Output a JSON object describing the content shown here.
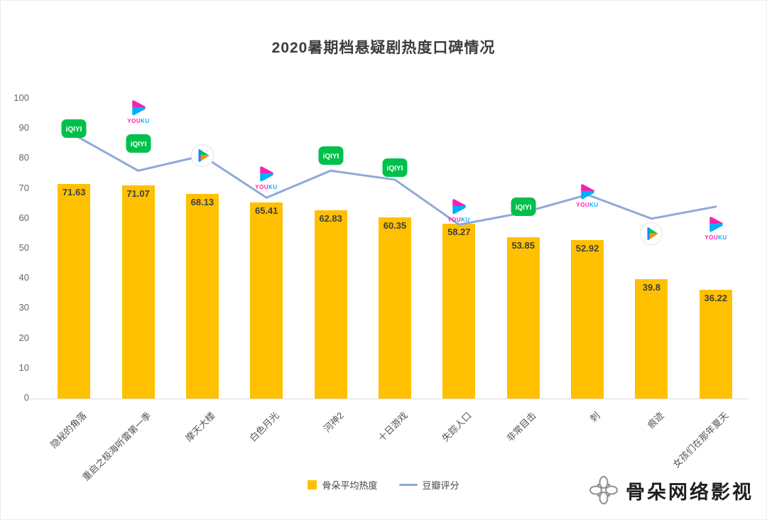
{
  "title": "2020暑期档悬疑剧热度口碑情况",
  "watermark": "骨朵网络影视",
  "legend": {
    "bar": "骨朵平均热度",
    "line": "豆瓣评分"
  },
  "colors": {
    "bar": "#FFC000",
    "line": "#8EA9DB",
    "iqiyi": "#00C04B",
    "youku_pink": "#FF1EAE",
    "youku_blue": "#00AEFF",
    "tencent_blue": "#1789FC",
    "tencent_green": "#00C65E",
    "tencent_orange": "#FF8F00",
    "bar_value_text": "#3f3f3f",
    "axis_text": "#666666"
  },
  "chart_data": {
    "type": "bar+line",
    "title": "2020暑期档悬疑剧热度口碑情况",
    "categories": [
      "隐秘的角落",
      "重启之极海听雷第一季",
      "摩天大楼",
      "白色月光",
      "河神2",
      "十日游戏",
      "失踪人口",
      "非常目击",
      "刺",
      "痕迹",
      "女孩们在那年夏天"
    ],
    "series": [
      {
        "name": "骨朵平均热度",
        "type": "bar",
        "color": "#FFC000",
        "values": [
          71.63,
          71.07,
          68.13,
          65.41,
          62.83,
          60.35,
          58.27,
          53.85,
          52.92,
          39.8,
          36.22
        ]
      },
      {
        "name": "豆瓣评分",
        "type": "line",
        "color": "#8EA9DB",
        "values": [
          88,
          76,
          81,
          67,
          76,
          73,
          58,
          62,
          68,
          60,
          64
        ]
      }
    ],
    "ylim": [
      0,
      100
    ],
    "y_ticks": [
      0,
      10,
      20,
      30,
      40,
      50,
      60,
      70,
      80,
      90,
      100
    ],
    "grid": false,
    "legend_position": "bottom",
    "platform_annotations": [
      {
        "category": "隐秘的角落",
        "platforms": [
          {
            "name": "iqiyi",
            "value": 90
          }
        ]
      },
      {
        "category": "重启之极海听雷第一季",
        "platforms": [
          {
            "name": "youku",
            "value": 96
          },
          {
            "name": "iqiyi",
            "value": 85
          }
        ]
      },
      {
        "category": "摩天大楼",
        "platforms": [
          {
            "name": "tencent",
            "value": 81
          }
        ]
      },
      {
        "category": "白色月光",
        "platforms": [
          {
            "name": "youku",
            "value": 74
          }
        ]
      },
      {
        "category": "河神2",
        "platforms": [
          {
            "name": "iqiyi",
            "value": 81
          }
        ]
      },
      {
        "category": "十日游戏",
        "platforms": [
          {
            "name": "iqiyi",
            "value": 77
          }
        ]
      },
      {
        "category": "失踪人口",
        "platforms": [
          {
            "name": "youku",
            "value": 63
          }
        ]
      },
      {
        "category": "非常目击",
        "platforms": [
          {
            "name": "iqiyi",
            "value": 64
          }
        ]
      },
      {
        "category": "刺",
        "platforms": [
          {
            "name": "youku",
            "value": 68
          }
        ]
      },
      {
        "category": "痕迹",
        "platforms": [
          {
            "name": "tencent",
            "value": 55
          }
        ]
      },
      {
        "category": "女孩们在那年夏天",
        "platforms": [
          {
            "name": "youku",
            "value": 57
          }
        ]
      }
    ]
  }
}
